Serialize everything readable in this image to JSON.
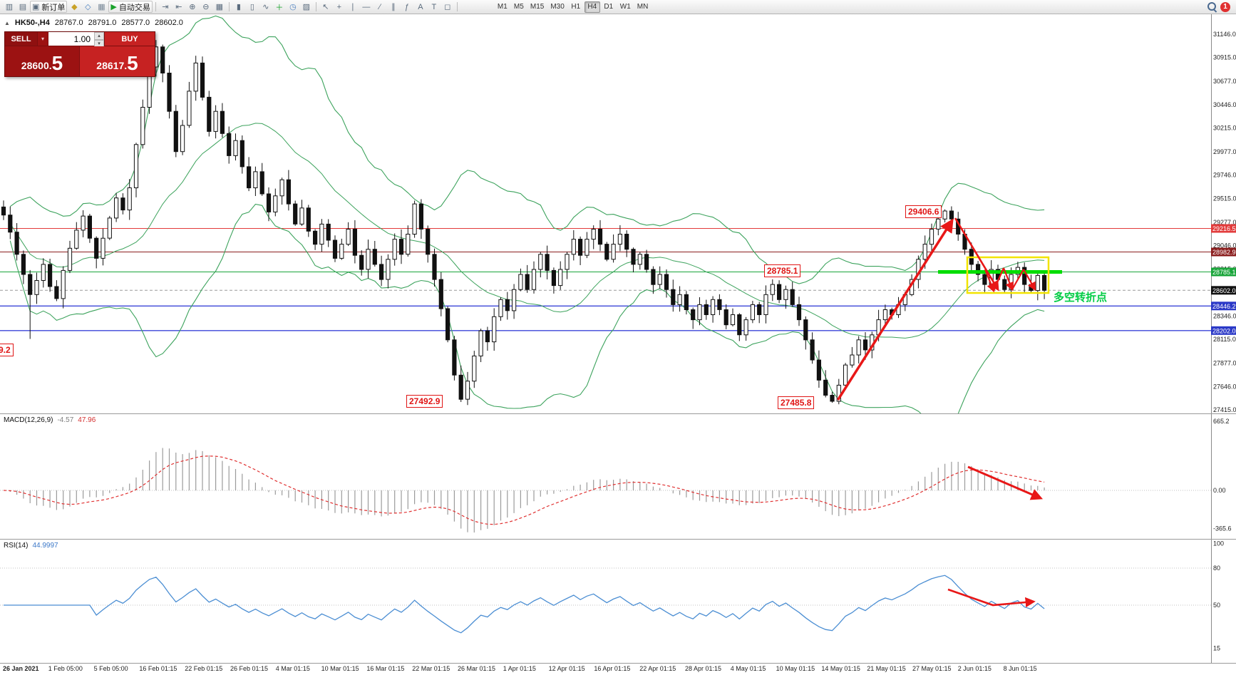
{
  "toolbar": {
    "items": [
      {
        "name": "new-chart-icon",
        "glyph": "▥"
      },
      {
        "name": "profiles-icon",
        "glyph": "▤"
      },
      {
        "name": "new-order-button",
        "glyph": "▣",
        "label": "新订单",
        "button": true
      },
      {
        "name": "market-watch-icon",
        "glyph": "◆",
        "color": "#c9a227"
      },
      {
        "name": "data-window-icon",
        "glyph": "◇",
        "color": "#4a7fbf"
      },
      {
        "name": "navigator-icon",
        "glyph": "▦",
        "color": "#7a8a99"
      },
      {
        "name": "autotrading-button",
        "glyph": "▶",
        "label": "自动交易",
        "color": "#1aa22b",
        "button": true
      },
      {
        "name": "separator"
      },
      {
        "name": "chart-shift-icon",
        "glyph": "⇥"
      },
      {
        "name": "auto-scroll-icon",
        "glyph": "⇤"
      },
      {
        "name": "zoom-in-icon",
        "glyph": "⊕"
      },
      {
        "name": "zoom-out-icon",
        "glyph": "⊖"
      },
      {
        "name": "tile-windows-icon",
        "glyph": "▦"
      },
      {
        "name": "separator"
      },
      {
        "name": "bar-chart-icon",
        "glyph": "▮"
      },
      {
        "name": "candlestick-chart-icon",
        "glyph": "▯"
      },
      {
        "name": "line-chart-icon",
        "glyph": "∿"
      },
      {
        "name": "indicators-add-icon",
        "glyph": "＋",
        "color": "#18a32a"
      },
      {
        "name": "periods-icon",
        "glyph": "◷",
        "color": "#4a7fbf"
      },
      {
        "name": "templates-icon",
        "glyph": "▨"
      },
      {
        "name": "separator"
      },
      {
        "name": "cursor-icon",
        "glyph": "↖"
      },
      {
        "name": "crosshair-icon",
        "glyph": "+"
      },
      {
        "name": "vertical-line-icon",
        "glyph": "∣"
      },
      {
        "name": "horizontal-line-icon",
        "glyph": "―"
      },
      {
        "name": "trendline-icon",
        "glyph": "∕"
      },
      {
        "name": "channel-icon",
        "glyph": "∥"
      },
      {
        "name": "fibonacci-icon",
        "glyph": "ƒ"
      },
      {
        "name": "text-icon",
        "glyph": "A"
      },
      {
        "name": "text-label-icon",
        "glyph": "T"
      },
      {
        "name": "shapes-icon",
        "glyph": "◻"
      },
      {
        "name": "separator"
      }
    ],
    "timeframes": [
      "M1",
      "M5",
      "M15",
      "M30",
      "H1",
      "H4",
      "D1",
      "W1",
      "MN"
    ],
    "active_timeframe": "H4",
    "badge": "1"
  },
  "chart_header": {
    "collapse_glyph": "▲",
    "symbol": "HK50-,H4",
    "open": "28767.0",
    "high": "28791.0",
    "low": "28577.0",
    "close": "28602.0"
  },
  "trade_panel": {
    "sell_label": "SELL",
    "buy_label": "BUY",
    "volume": "1.00",
    "dropdown_glyph": "▾",
    "spin_up_glyph": "▴",
    "spin_down_glyph": "▾",
    "sell_price_main": "28600.",
    "sell_price_big": "5",
    "buy_price_main": "28617.",
    "buy_price_big": "5"
  },
  "price_axis": {
    "ticks": [
      {
        "label": "31146.0",
        "value": 31146.0
      },
      {
        "label": "30915.0",
        "value": 30915.0
      },
      {
        "label": "30677.0",
        "value": 30677.0
      },
      {
        "label": "30446.0",
        "value": 30446.0
      },
      {
        "label": "30215.0",
        "value": 30215.0
      },
      {
        "label": "29977.0",
        "value": 29977.0
      },
      {
        "label": "29746.0",
        "value": 29746.0
      },
      {
        "label": "29515.0",
        "value": 29515.0
      },
      {
        "label": "29277.0",
        "value": 29277.0
      },
      {
        "label": "29046.0",
        "value": 29046.0
      },
      {
        "label": "28815.0",
        "value": 28815.0
      },
      {
        "label": "28346.0",
        "value": 28346.0
      },
      {
        "label": "28115.0",
        "value": 28115.0
      },
      {
        "label": "27877.0",
        "value": 27877.0
      },
      {
        "label": "27646.0",
        "value": 27646.0
      },
      {
        "label": "27415.0",
        "value": 27415.0
      }
    ],
    "badges": [
      {
        "label": "29216.5",
        "value": 29216.5,
        "bg": "#e23b3b"
      },
      {
        "label": "28982.9",
        "value": 28982.9,
        "bg": "#8b1f1f"
      },
      {
        "label": "28785.1",
        "value": 28785.1,
        "bg": "#19a53a"
      },
      {
        "label": "28602.0",
        "value": 28602.0,
        "bg": "#111111"
      },
      {
        "label": "28446.2",
        "value": 28446.2,
        "bg": "#2b39c7"
      },
      {
        "label": "28202.0",
        "value": 28202.0,
        "bg": "#2b39c7"
      }
    ]
  },
  "hlines": [
    {
      "value": 29216.5,
      "color": "#e23b3b",
      "width": 1
    },
    {
      "value": 28982.9,
      "color": "#8b1f1f",
      "width": 1
    },
    {
      "value": 28785.1,
      "color": "#19a53a",
      "width": 1
    },
    {
      "value": 28602.0,
      "color": "#9a9a9a",
      "width": 1,
      "dash": "4,3"
    },
    {
      "value": 28446.2,
      "color": "#3b46d8",
      "width": 1.4
    },
    {
      "value": 28202.0,
      "color": "#3b46d8",
      "width": 1.4
    }
  ],
  "support_band": {
    "price": 28785.1,
    "color": "#00dd00"
  },
  "highlight_box": {
    "color": "#f2e400"
  },
  "annotations": {
    "peak_label": "29406.6",
    "level_label": "28785.1",
    "low1_label": "27492.9",
    "low2_label": "27485.8",
    "left_partial_label": "9.2",
    "turning_point_label": "多空转折点"
  },
  "macd": {
    "title": "MACD(12,26,9)",
    "value_main": "-4.57",
    "value_signal": "47.96",
    "ticks": [
      {
        "label": "665.2",
        "value": 665.2
      },
      {
        "label": "0.00",
        "value": 0
      },
      {
        "label": "-365.6",
        "value": -365.6
      }
    ]
  },
  "rsi": {
    "title": "RSI(14)",
    "value": "44.9997",
    "levels": [
      80,
      50
    ],
    "ticks": [
      {
        "label": "100",
        "value": 100
      },
      {
        "label": "80",
        "value": 80
      },
      {
        "label": "50",
        "value": 50
      },
      {
        "label": "15",
        "value": 15
      }
    ]
  },
  "time_axis": [
    "26 Jan 2021",
    "1 Feb 05:00",
    "5 Feb 05:00",
    "16 Feb 01:15",
    "22 Feb 01:15",
    "26 Feb 01:15",
    "4 Mar 01:15",
    "10 Mar 01:15",
    "16 Mar 01:15",
    "22 Mar 01:15",
    "26 Mar 01:15",
    "1 Apr 01:15",
    "12 Apr 01:15",
    "16 Apr 01:15",
    "22 Apr 01:15",
    "28 Apr 01:15",
    "4 May 01:15",
    "10 May 01:15",
    "14 May 01:15",
    "21 May 01:15",
    "27 May 01:15",
    "2 Jun 01:15",
    "8 Jun 01:15"
  ],
  "chart_data": {
    "type": "candlestick",
    "symbol": "HK50-",
    "timeframe": "H4",
    "y_range": [
      27415,
      31146
    ],
    "bollinger": {
      "period": 20,
      "deviation": 2
    },
    "closes": [
      29350,
      29180,
      28960,
      28760,
      28560,
      28700,
      28860,
      28640,
      28520,
      28800,
      29020,
      29200,
      29340,
      29120,
      28920,
      29120,
      29320,
      29520,
      29400,
      29620,
      30050,
      30420,
      30820,
      31020,
      30760,
      30380,
      29980,
      30240,
      30580,
      30860,
      30520,
      30180,
      30380,
      30160,
      29940,
      30090,
      29830,
      29620,
      29780,
      29560,
      29380,
      29540,
      29700,
      29460,
      29260,
      29420,
      29190,
      29060,
      29260,
      29100,
      28920,
      29060,
      29210,
      28950,
      28810,
      29010,
      28860,
      28710,
      28910,
      29110,
      28960,
      29160,
      29460,
      29210,
      28960,
      28710,
      28420,
      28110,
      27760,
      27520,
      27700,
      27950,
      28200,
      28090,
      28340,
      28510,
      28400,
      28610,
      28760,
      28610,
      28810,
      28960,
      28800,
      28650,
      28810,
      28960,
      29110,
      28950,
      29110,
      29210,
      29060,
      28910,
      29060,
      29160,
      29010,
      28860,
      28960,
      28810,
      28660,
      28760,
      28610,
      28460,
      28560,
      28410,
      28310,
      28460,
      28360,
      28510,
      28410,
      28260,
      28360,
      28160,
      28310,
      28460,
      28360,
      28560,
      28660,
      28510,
      28610,
      28460,
      28310,
      28110,
      27910,
      27710,
      27560,
      27500,
      27660,
      27860,
      27960,
      28110,
      28010,
      28160,
      28310,
      28410,
      28360,
      28460,
      28560,
      28710,
      28910,
      29060,
      29210,
      29310,
      29390,
      29310,
      29160,
      29010,
      28860,
      28760,
      28660,
      28810,
      28710,
      28610,
      28760,
      28830,
      28660,
      28600,
      28750,
      28602
    ],
    "anchors": {
      "left_wick_idx": 4,
      "left_wick_low": 28119.2,
      "low1_idx": 69,
      "low1": 27492.9,
      "low2_idx": 125,
      "low2": 27485.8,
      "peak_idx": 142,
      "peak": 29406.6
    }
  }
}
